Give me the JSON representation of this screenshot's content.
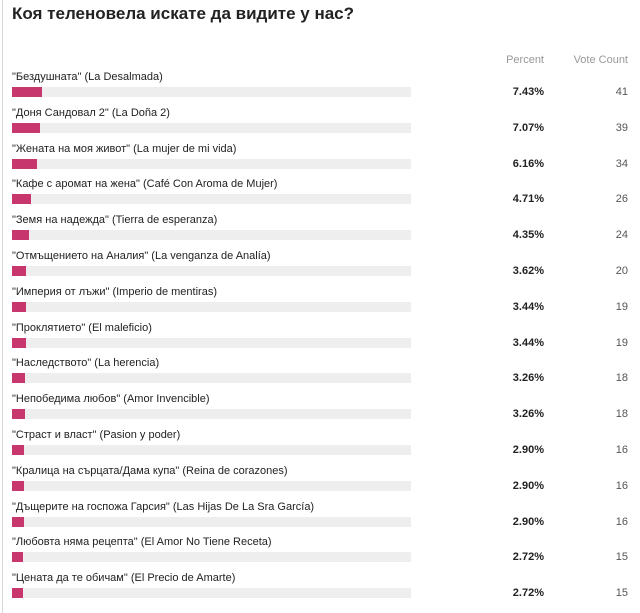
{
  "title": "Коя теленовела искате да видите у нас?",
  "headers": {
    "percent": "Percent",
    "vote_count": "Vote Count"
  },
  "colors": {
    "bar": "#c8366e",
    "track": "#eeeeee"
  },
  "chart_data": {
    "type": "bar",
    "orientation": "horizontal",
    "title": "Коя теленовела искате да видите у нас?",
    "categories": [
      "\"Бездушната\" (La Desalmada)",
      "\"Доня Сандовал 2\" (La Doña 2)",
      "\"Жената на моя живот\" (La mujer de mi vida)",
      "\"Кафе с аромат на жена\" (Café Con Aroma de Mujer)",
      "\"Земя на надежда\" (Tierra de esperanza)",
      "\"Отмъщението на Аналия\" (La venganza de Analía)",
      "\"Империя от лъжи\" (Imperio de mentiras)",
      "\"Проклятието\" (El maleficio)",
      "\"Наследството\" (La herencia)",
      "\"Непобедима любов\" (Amor Invencible)",
      "\"Страст и власт\" (Pasion y poder)",
      "\"Кралица на сърцата/Дама купа\" (Reina de corazones)",
      "\"Дъщерите на госпожа Гарсия\" (Las Hijas De La Sra García)",
      "\"Любовта няма рецепта\" (El Amor No Tiene Receta)",
      "\"Цената да те обичам\" (El Precio de Amarte)"
    ],
    "percent_labels": [
      "7.43%",
      "7.07%",
      "6.16%",
      "4.71%",
      "4.35%",
      "3.62%",
      "3.44%",
      "3.44%",
      "3.26%",
      "3.26%",
      "2.90%",
      "2.90%",
      "2.90%",
      "2.72%",
      "2.72%"
    ],
    "percent_values": [
      7.43,
      7.07,
      6.16,
      4.71,
      4.35,
      3.62,
      3.44,
      3.44,
      3.26,
      3.26,
      2.9,
      2.9,
      2.9,
      2.72,
      2.72
    ],
    "vote_counts": [
      "41",
      "39",
      "34",
      "26",
      "24",
      "20",
      "19",
      "19",
      "18",
      "18",
      "16",
      "16",
      "16",
      "15",
      "15"
    ],
    "xlim": [
      0,
      100
    ]
  }
}
